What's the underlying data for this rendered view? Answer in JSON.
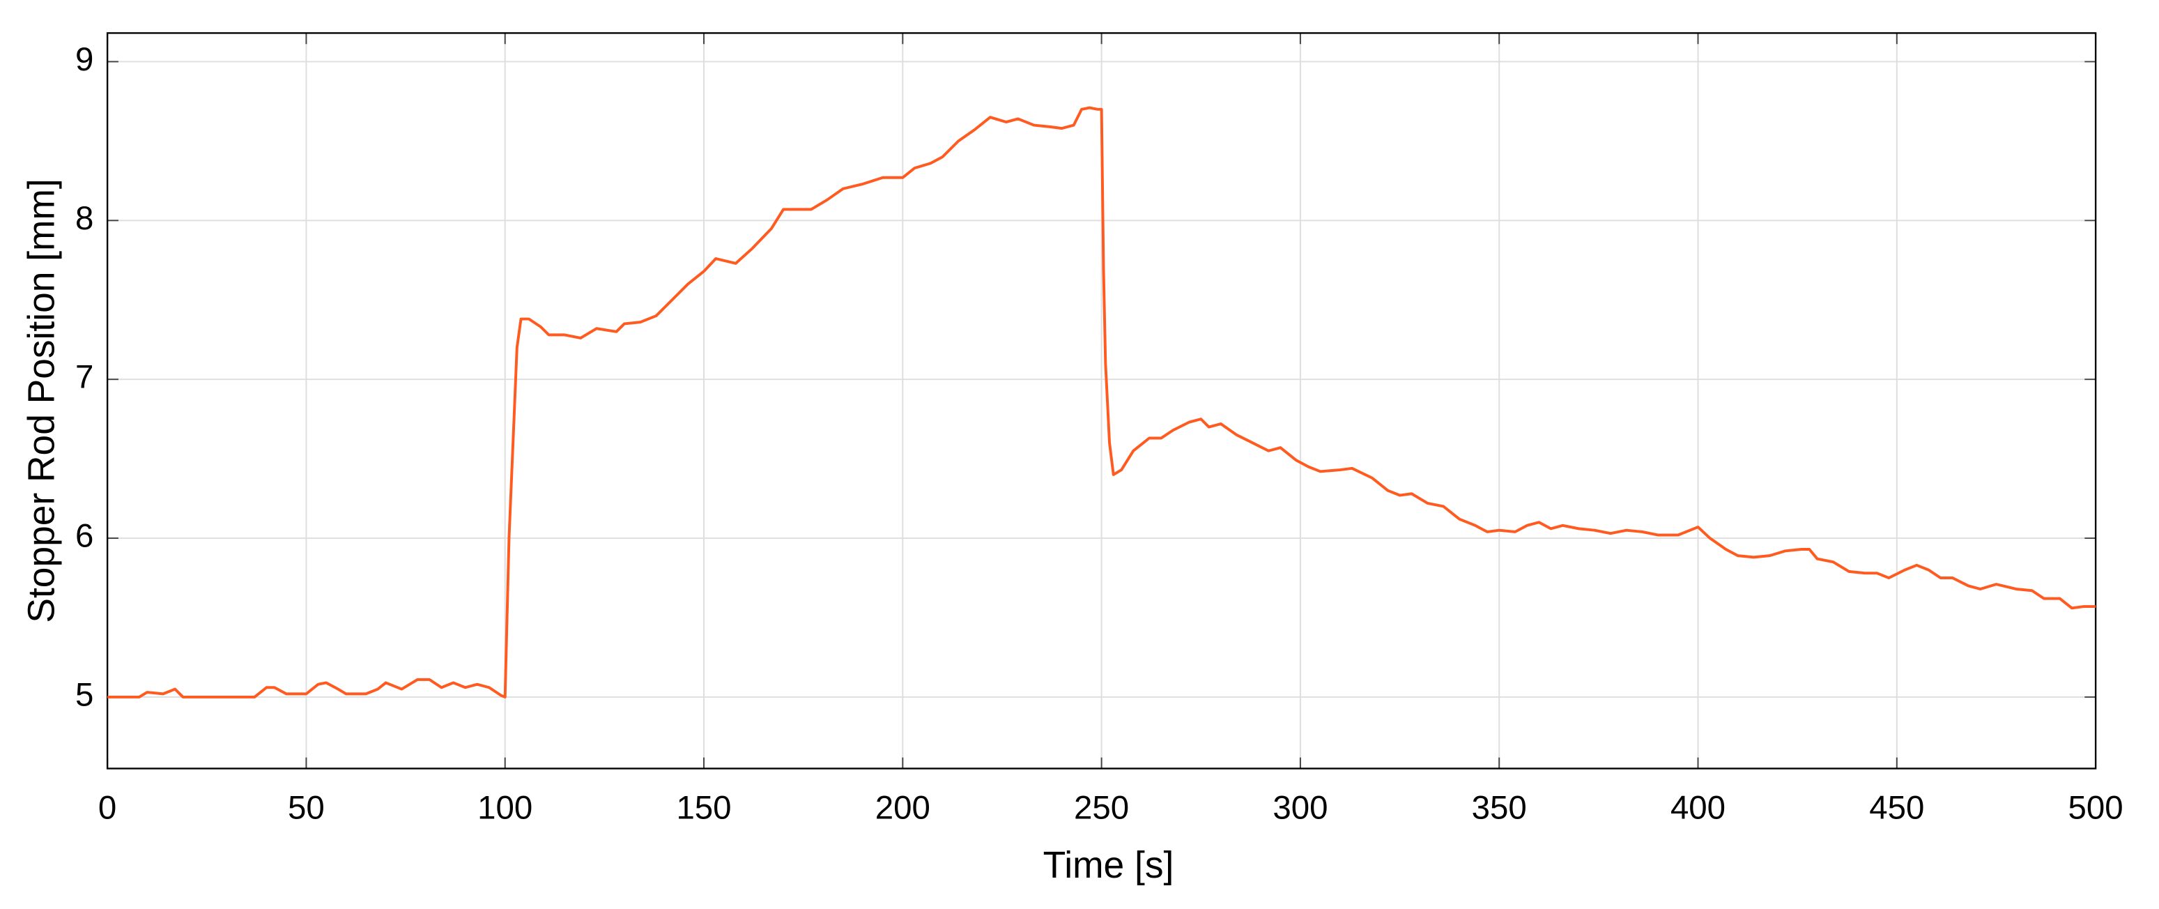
{
  "chart_data": {
    "type": "line",
    "xlabel": "Time [s]",
    "ylabel": "Stopper Rod Position [mm]",
    "xlim": [
      0,
      500
    ],
    "xticks": [
      0,
      50,
      100,
      150,
      200,
      250,
      300,
      350,
      400,
      450,
      500
    ],
    "ylim": [
      4.55,
      9.18
    ],
    "yticks": [
      5,
      6,
      7,
      8,
      9
    ],
    "grid": true,
    "x": [
      0,
      8,
      10,
      14,
      17,
      19,
      25,
      37,
      40,
      42,
      45,
      50,
      53,
      55,
      58,
      60,
      65,
      68,
      70,
      74,
      78,
      81,
      84,
      87,
      90,
      93,
      96,
      99,
      100,
      101,
      102,
      103,
      104,
      106,
      109,
      111,
      115,
      119,
      123,
      128,
      130,
      134,
      138,
      142,
      146,
      150,
      153,
      158,
      162,
      167,
      170,
      173,
      177,
      181,
      185,
      190,
      195,
      200,
      203,
      207,
      210,
      214,
      218,
      222,
      226,
      229,
      233,
      237,
      240,
      243,
      245,
      247,
      249,
      250,
      250.5,
      251,
      252,
      253,
      255,
      258,
      262,
      265,
      268,
      272,
      275,
      277,
      280,
      284,
      288,
      292,
      295,
      299,
      302,
      305,
      310,
      313,
      318,
      322,
      325,
      328,
      332,
      336,
      340,
      344,
      347,
      350,
      354,
      357,
      360,
      363,
      366,
      370,
      374,
      378,
      382,
      386,
      390,
      395,
      400,
      403,
      407,
      410,
      414,
      418,
      422,
      426,
      428,
      430,
      434,
      438,
      442,
      445,
      448,
      452,
      455,
      458,
      461,
      464,
      468,
      471,
      475,
      480,
      484,
      487,
      491,
      494,
      497,
      500
    ],
    "series": [
      {
        "color": "#ff5a1f",
        "values": [
          5.0,
          5.0,
          5.03,
          5.02,
          5.05,
          5.0,
          5.0,
          5.0,
          5.06,
          5.06,
          5.02,
          5.02,
          5.08,
          5.09,
          5.05,
          5.02,
          5.02,
          5.05,
          5.09,
          5.05,
          5.11,
          5.11,
          5.06,
          5.09,
          5.06,
          5.08,
          5.06,
          5.01,
          5.0,
          6.0,
          6.6,
          7.2,
          7.38,
          7.38,
          7.33,
          7.28,
          7.28,
          7.26,
          7.32,
          7.3,
          7.35,
          7.36,
          7.4,
          7.5,
          7.6,
          7.68,
          7.76,
          7.73,
          7.82,
          7.95,
          8.07,
          8.07,
          8.07,
          8.13,
          8.2,
          8.23,
          8.27,
          8.27,
          8.33,
          8.36,
          8.4,
          8.5,
          8.57,
          8.65,
          8.62,
          8.64,
          8.6,
          8.59,
          8.58,
          8.6,
          8.7,
          8.71,
          8.7,
          8.7,
          7.7,
          7.1,
          6.6,
          6.4,
          6.43,
          6.55,
          6.63,
          6.63,
          6.68,
          6.73,
          6.75,
          6.7,
          6.72,
          6.65,
          6.6,
          6.55,
          6.57,
          6.49,
          6.45,
          6.42,
          6.43,
          6.44,
          6.38,
          6.3,
          6.27,
          6.28,
          6.22,
          6.2,
          6.12,
          6.08,
          6.04,
          6.05,
          6.04,
          6.08,
          6.1,
          6.06,
          6.08,
          6.06,
          6.05,
          6.03,
          6.05,
          6.04,
          6.02,
          6.02,
          6.07,
          6.0,
          5.93,
          5.89,
          5.88,
          5.89,
          5.92,
          5.93,
          5.93,
          5.87,
          5.85,
          5.79,
          5.78,
          5.78,
          5.75,
          5.8,
          5.83,
          5.8,
          5.75,
          5.75,
          5.7,
          5.68,
          5.71,
          5.68,
          5.67,
          5.62,
          5.62,
          5.56,
          5.57,
          5.57
        ]
      }
    ]
  }
}
